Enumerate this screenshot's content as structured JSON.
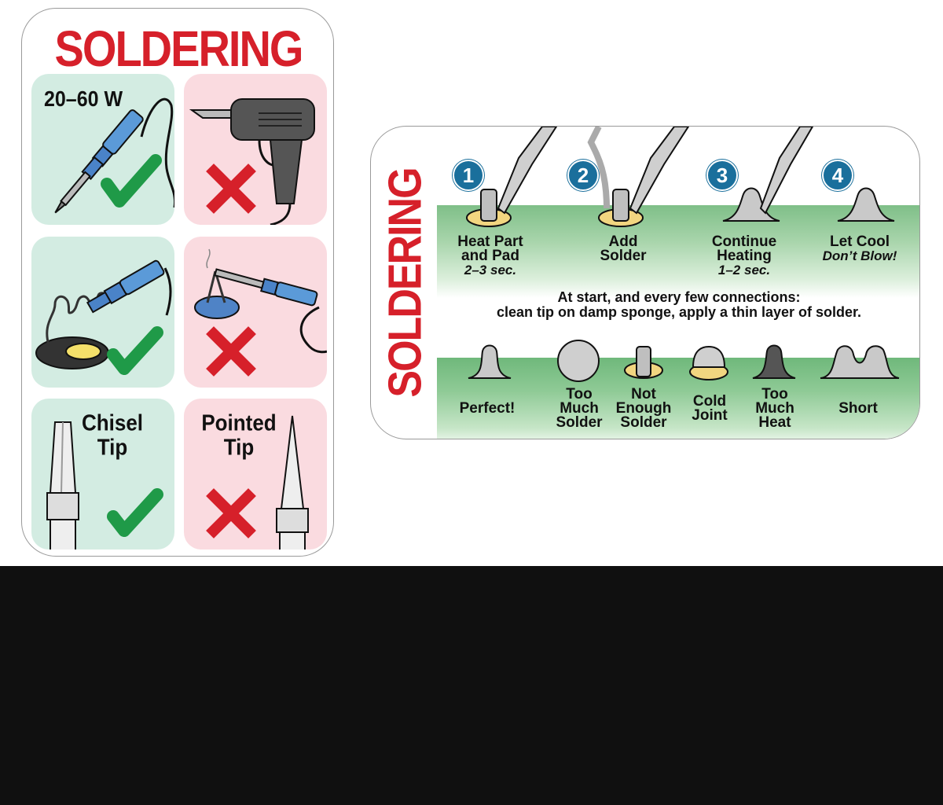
{
  "left_card": {
    "title": "SOLDERING",
    "wattage_label": "20–60 W",
    "chisel_label": [
      "Chisel",
      "Tip"
    ],
    "pointed_label": [
      "Pointed",
      "Tip"
    ]
  },
  "right_card": {
    "title": "SOLDERING",
    "steps": [
      {
        "num": "1",
        "lines": [
          "Heat Part",
          "and Pad"
        ],
        "note": "2–3 sec."
      },
      {
        "num": "2",
        "lines": [
          "Add",
          "Solder"
        ],
        "note": ""
      },
      {
        "num": "3",
        "lines": [
          "Continue",
          "Heating"
        ],
        "note": "1–2 sec."
      },
      {
        "num": "4",
        "lines": [
          "Let Cool"
        ],
        "note": "Don’t Blow!"
      }
    ],
    "tip_line1": "At start, and every few connections:",
    "tip_line2": "clean tip on damp sponge, apply a thin layer of solder.",
    "joints": [
      {
        "lines": [
          "Perfect!"
        ]
      },
      {
        "lines": [
          "Too",
          "Much",
          "Solder"
        ]
      },
      {
        "lines": [
          "Not",
          "Enough",
          "Solder"
        ]
      },
      {
        "lines": [
          "Cold",
          "Joint"
        ]
      },
      {
        "lines": [
          "Too",
          "Much",
          "Heat"
        ]
      },
      {
        "lines": [
          "Short"
        ]
      }
    ]
  },
  "colors": {
    "red": "#d6202a",
    "good_bg": "#d3ece2",
    "bad_bg": "#fadbe0",
    "check": "#1f9a48",
    "step_blue": "#1a6f9c",
    "board_green": "#7fbf88"
  }
}
